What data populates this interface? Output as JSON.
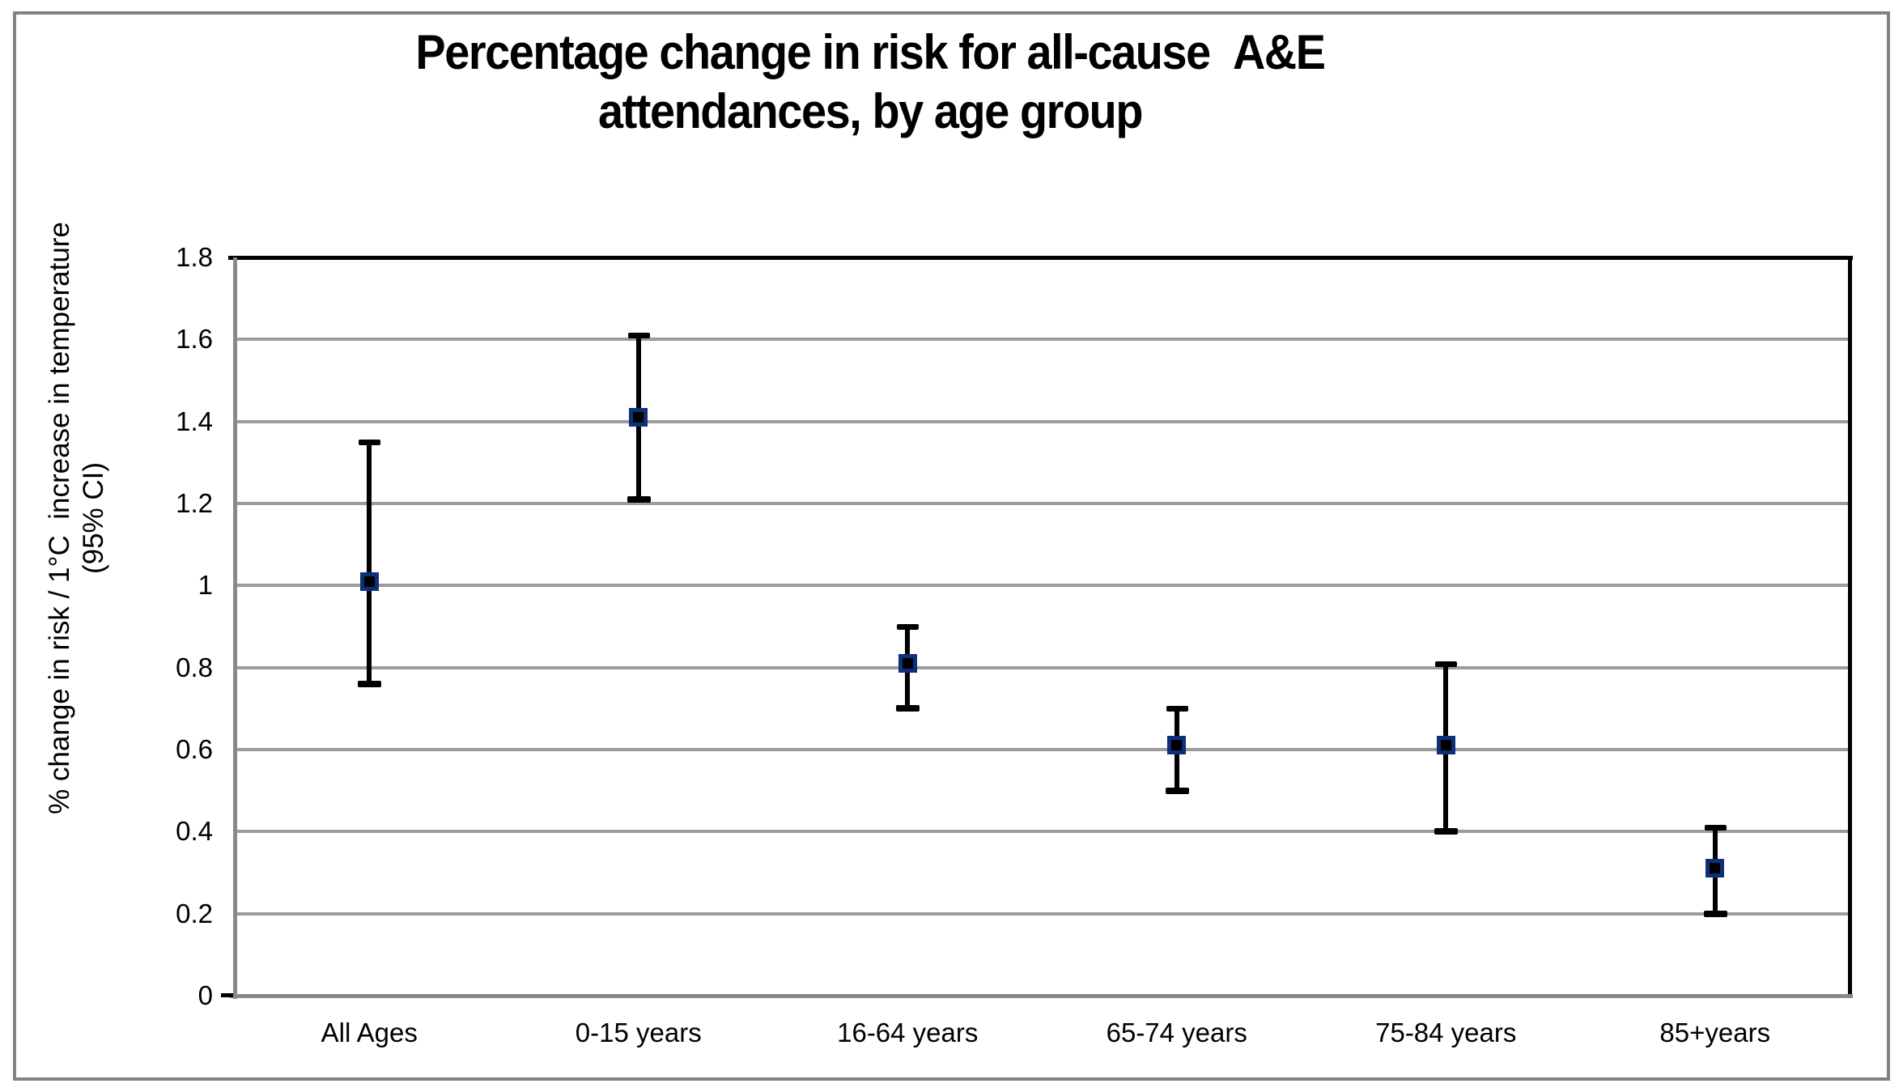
{
  "chart_data": {
    "type": "scatter",
    "variant": "point-estimates-with-95ci-error-bars",
    "title": "Percentage change in risk for all-cause  A&E attendances, by age group",
    "title_line1": "Percentage change in risk for all-cause  A&E",
    "title_line2": "attendances, by age group",
    "ylabel_line1": "% change in risk / 1°C  increase in temperature",
    "ylabel_line2": "(95% CI)",
    "categories": [
      "All Ages",
      "0-15 years",
      "16-64 years",
      "65-74 years",
      "75-84 years",
      "85+years"
    ],
    "series": [
      {
        "name": "% change in risk per 1°C increase (95% CI)",
        "values": [
          1.01,
          1.41,
          0.81,
          0.61,
          0.61,
          0.31
        ],
        "ci_low": [
          0.76,
          1.21,
          0.7,
          0.5,
          0.4,
          0.2
        ],
        "ci_high": [
          1.35,
          1.61,
          0.9,
          0.7,
          0.81,
          0.41
        ]
      }
    ],
    "ylim": [
      0,
      1.8
    ],
    "ytick_labels": [
      "0",
      "0.2",
      "0.4",
      "0.6",
      "0.8",
      "1",
      "1.2",
      "1.4",
      "1.6",
      "1.8"
    ],
    "grid": true,
    "legend": "none",
    "colors": {
      "marker_fill": "#000000",
      "marker_border": "#0d3178",
      "error_bar": "#000000",
      "gridline": "#9c9c9c",
      "axis_line": "#898989",
      "plot_border": "#000000",
      "outer_frame": "#818181",
      "text": "#000000",
      "background": "#ffffff"
    }
  }
}
